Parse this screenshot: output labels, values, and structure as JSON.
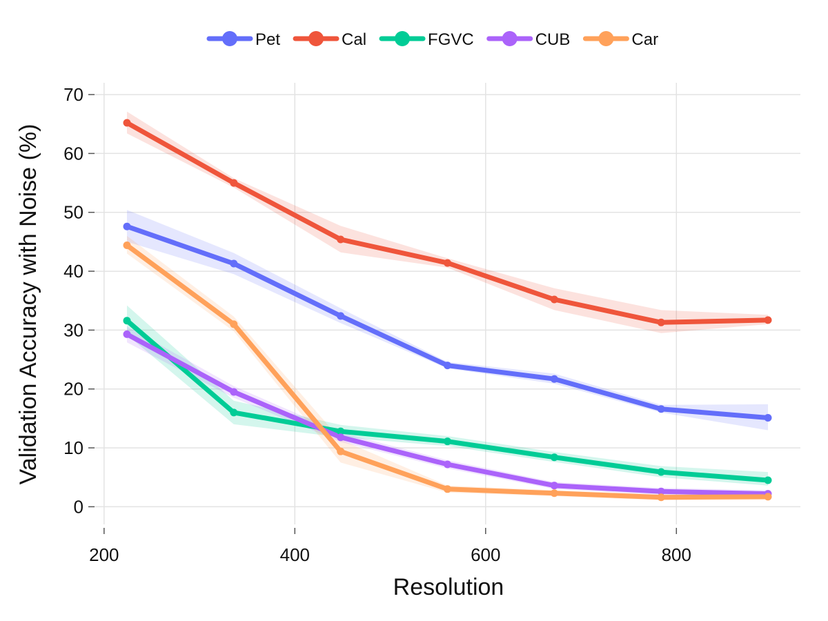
{
  "chart_data": {
    "type": "line",
    "xlabel": "Resolution",
    "ylabel": "Validation Accuracy with Noise (%)",
    "xlim": [
      190,
      930
    ],
    "ylim": [
      -3,
      72
    ],
    "x_ticks": [
      200,
      400,
      600,
      800
    ],
    "y_ticks": [
      0,
      10,
      20,
      30,
      40,
      50,
      60,
      70
    ],
    "grid": true,
    "legend": "top-center",
    "x": [
      224,
      336,
      448,
      560,
      672,
      784,
      896
    ],
    "series": [
      {
        "name": "Pet",
        "color": "#636efa",
        "values": [
          47.6,
          41.3,
          32.4,
          24.0,
          21.7,
          16.6,
          15.1
        ],
        "band_lower": [
          45.0,
          39.5,
          31.2,
          23.5,
          20.9,
          16.0,
          13.0
        ],
        "band_upper": [
          50.4,
          43.1,
          33.7,
          24.6,
          22.6,
          17.3,
          17.4
        ]
      },
      {
        "name": "Cal",
        "color": "#ef553b",
        "values": [
          65.2,
          55.0,
          45.4,
          41.4,
          35.2,
          31.3,
          31.7
        ],
        "band_lower": [
          63.4,
          54.2,
          43.2,
          40.6,
          33.4,
          29.5,
          31.0
        ],
        "band_upper": [
          67.1,
          55.8,
          47.7,
          42.2,
          37.1,
          33.4,
          32.6
        ]
      },
      {
        "name": "FGVC",
        "color": "#00cc96",
        "values": [
          31.6,
          16.0,
          12.8,
          11.1,
          8.4,
          5.9,
          4.5
        ],
        "band_lower": [
          29.2,
          14.0,
          11.8,
          10.3,
          7.6,
          5.0,
          3.6
        ],
        "band_upper": [
          34.2,
          18.0,
          13.9,
          12.0,
          9.3,
          6.9,
          5.9
        ]
      },
      {
        "name": "CUB",
        "color": "#ab63fa",
        "values": [
          29.3,
          19.5,
          11.8,
          7.2,
          3.6,
          2.6,
          2.2
        ],
        "band_lower": [
          27.9,
          18.5,
          11.0,
          6.5,
          3.0,
          2.0,
          1.7
        ],
        "band_upper": [
          30.6,
          20.5,
          12.6,
          7.9,
          4.2,
          3.2,
          2.8
        ]
      },
      {
        "name": "Car",
        "color": "#ffa15a",
        "values": [
          44.4,
          31.0,
          9.4,
          3.0,
          2.3,
          1.6,
          1.7
        ],
        "band_lower": [
          43.0,
          29.8,
          7.5,
          2.4,
          1.8,
          1.1,
          1.2
        ],
        "band_upper": [
          46.0,
          32.3,
          11.4,
          3.6,
          2.8,
          2.1,
          2.2
        ]
      }
    ]
  }
}
